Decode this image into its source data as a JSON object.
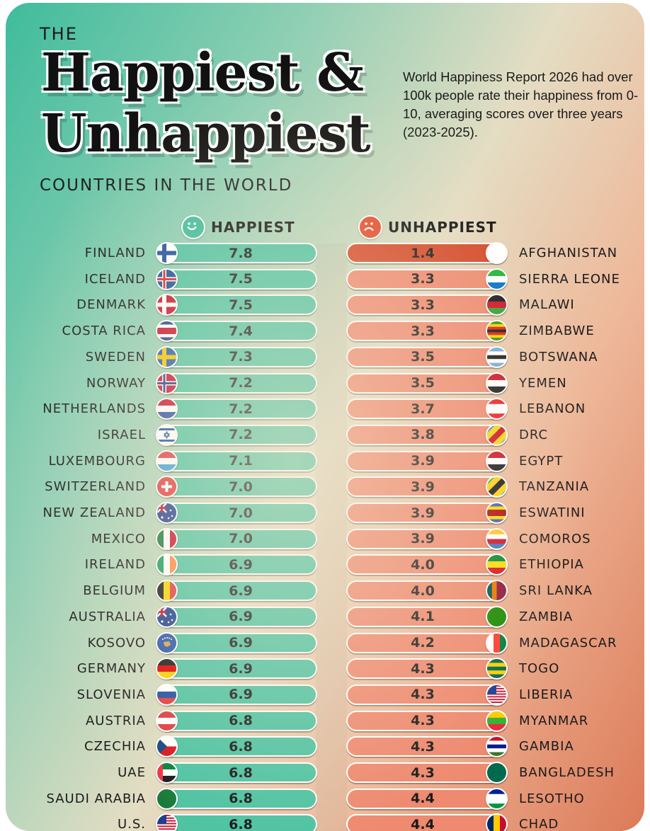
{
  "header": {
    "the": "THE",
    "title_line1": "Happiest &",
    "title_line2": "Unhappiest",
    "subtitle": "COUNTRIES IN THE WORLD",
    "description": "World Happiness Report 2026 had over 100k people rate their happiness from 0-10, averaging scores over three years (2023-2025)."
  },
  "legend": {
    "happiest": "HAPPIEST",
    "unhappiest": "UNHAPPIEST"
  },
  "colors": {
    "happy": "#4fc3a2",
    "unhappy": "#ee8a70",
    "unhappy_first": "#d44a29"
  },
  "chart_data": {
    "type": "table",
    "title": "The Happiest & Unhappiest Countries in the World",
    "series": [
      {
        "name": "HAPPIEST",
        "categories": [
          "FINLAND",
          "ICELAND",
          "DENMARK",
          "COSTA RICA",
          "SWEDEN",
          "NORWAY",
          "NETHERLANDS",
          "ISRAEL",
          "LUXEMBOURG",
          "SWITZERLAND",
          "NEW ZEALAND",
          "MEXICO",
          "IRELAND",
          "BELGIUM",
          "AUSTRALIA",
          "KOSOVO",
          "GERMANY",
          "SLOVENIA",
          "AUSTRIA",
          "CZECHIA",
          "UAE",
          "SAUDI ARABIA",
          "U.S."
        ],
        "values": [
          "7.8",
          "7.5",
          "7.5",
          "7.4",
          "7.3",
          "7.2",
          "7.2",
          "7.2",
          "7.1",
          "7.0",
          "7.0",
          "7.0",
          "6.9",
          "6.9",
          "6.9",
          "6.9",
          "6.9",
          "6.9",
          "6.8",
          "6.8",
          "6.8",
          "6.8",
          "6.8"
        ],
        "flags": [
          {
            "t": "nordic",
            "bg": "#ffffff",
            "c": "#1d4f9a"
          },
          {
            "t": "nordic",
            "bg": "#1d4f9a",
            "c": "#ffffff",
            "c2": "#d72c2c"
          },
          {
            "t": "nordic",
            "bg": "#c8102e",
            "c": "#ffffff"
          },
          {
            "t": "h",
            "c": [
              "#1d3f8f",
              "#ffffff",
              "#c8102e",
              "#c8102e",
              "#ffffff",
              "#1d3f8f"
            ]
          },
          {
            "t": "nordic",
            "bg": "#1f5fa8",
            "c": "#f5c400"
          },
          {
            "t": "nordic",
            "bg": "#c8102e",
            "c": "#ffffff",
            "c2": "#1d3f8f"
          },
          {
            "t": "h",
            "c": [
              "#c8102e",
              "#ffffff",
              "#2b4ea2"
            ]
          },
          {
            "t": "israel"
          },
          {
            "t": "h",
            "c": [
              "#e03a3e",
              "#ffffff",
              "#3aa0d8"
            ]
          },
          {
            "t": "swiss"
          },
          {
            "t": "union",
            "bg": "#1d3f8f"
          },
          {
            "t": "v",
            "c": [
              "#1a7a3a",
              "#ffffff",
              "#c8102e"
            ]
          },
          {
            "t": "v",
            "c": [
              "#169b62",
              "#ffffff",
              "#ff883e"
            ]
          },
          {
            "t": "v",
            "c": [
              "#1a1a1a",
              "#f6d500",
              "#e03a3e"
            ]
          },
          {
            "t": "union",
            "bg": "#1d3f8f"
          },
          {
            "t": "kosovo"
          },
          {
            "t": "h",
            "c": [
              "#1a1a1a",
              "#dd0000",
              "#ffce00"
            ]
          },
          {
            "t": "h",
            "c": [
              "#ffffff",
              "#1d4fa0",
              "#e03a3e"
            ]
          },
          {
            "t": "h",
            "c": [
              "#e03a3e",
              "#ffffff",
              "#e03a3e"
            ]
          },
          {
            "t": "czech"
          },
          {
            "t": "uae"
          },
          {
            "t": "solid",
            "bg": "#1a7a3a"
          },
          {
            "t": "usa"
          }
        ]
      },
      {
        "name": "UNHAPPIEST",
        "categories": [
          "AFGHANISTAN",
          "SIERRA LEONE",
          "MALAWI",
          "ZIMBABWE",
          "BOTSWANA",
          "YEMEN",
          "LEBANON",
          "DRC",
          "EGYPT",
          "TANZANIA",
          "ESWATINI",
          "COMOROS",
          "ETHIOPIA",
          "SRI LANKA",
          "ZAMBIA",
          "MADAGASCAR",
          "TOGO",
          "LIBERIA",
          "MYANMAR",
          "GAMBIA",
          "BANGLADESH",
          "LESOTHO",
          "CHAD"
        ],
        "values": [
          "1.4",
          "3.3",
          "3.3",
          "3.3",
          "3.5",
          "3.5",
          "3.7",
          "3.8",
          "3.9",
          "3.9",
          "3.9",
          "3.9",
          "4.0",
          "4.0",
          "4.1",
          "4.2",
          "4.3",
          "4.3",
          "4.3",
          "4.3",
          "4.3",
          "4.4",
          "4.4"
        ],
        "flags": [
          {
            "t": "solid",
            "bg": "#ffffff"
          },
          {
            "t": "h",
            "c": [
              "#1eb53a",
              "#ffffff",
              "#0072c6"
            ]
          },
          {
            "t": "h",
            "c": [
              "#1a1a1a",
              "#ce1126",
              "#339e35"
            ]
          },
          {
            "t": "h",
            "c": [
              "#319208",
              "#ffd200",
              "#de2010",
              "#1a1a1a",
              "#de2010",
              "#ffd200",
              "#319208"
            ]
          },
          {
            "t": "h",
            "c": [
              "#75aadb",
              "#ffffff",
              "#1a1a1a",
              "#ffffff",
              "#75aadb"
            ]
          },
          {
            "t": "h",
            "c": [
              "#ce1126",
              "#ffffff",
              "#1a1a1a"
            ]
          },
          {
            "t": "h",
            "c": [
              "#ed1c24",
              "#ffffff",
              "#ffffff",
              "#ed1c24"
            ]
          },
          {
            "t": "diag",
            "c": [
              "#2c7fd6",
              "#f7d618",
              "#ce1021",
              "#f7d618",
              "#2c7fd6"
            ]
          },
          {
            "t": "h",
            "c": [
              "#ce1126",
              "#ffffff",
              "#1a1a1a"
            ]
          },
          {
            "t": "diag",
            "c": [
              "#1eb53a",
              "#fcd116",
              "#1a1a1a",
              "#fcd116",
              "#00a3dd"
            ]
          },
          {
            "t": "h",
            "c": [
              "#3e5eb9",
              "#ffd900",
              "#b10c0c",
              "#b10c0c",
              "#ffd900",
              "#3e5eb9"
            ]
          },
          {
            "t": "h",
            "c": [
              "#ffc61e",
              "#ffffff",
              "#ce1126",
              "#3a75c4"
            ]
          },
          {
            "t": "h",
            "c": [
              "#078930",
              "#fcdd09",
              "#da121a"
            ]
          },
          {
            "t": "v",
            "c": [
              "#00534e",
              "#eb7400",
              "#8d153a",
              "#8d153a"
            ]
          },
          {
            "t": "solid",
            "bg": "#198a00"
          },
          {
            "t": "v",
            "c": [
              "#ffffff",
              "#fc3d32",
              "#007e3a"
            ]
          },
          {
            "t": "h",
            "c": [
              "#006a4e",
              "#ffce00",
              "#006a4e",
              "#ffce00",
              "#006a4e"
            ]
          },
          {
            "t": "usa"
          },
          {
            "t": "h",
            "c": [
              "#fecb00",
              "#34b233",
              "#ea2839"
            ]
          },
          {
            "t": "h",
            "c": [
              "#ce1126",
              "#ffffff",
              "#0c1c8c",
              "#ffffff",
              "#3a7728"
            ]
          },
          {
            "t": "solid",
            "bg": "#006a4e"
          },
          {
            "t": "h",
            "c": [
              "#00209f",
              "#ffffff",
              "#ffffff",
              "#009543"
            ]
          },
          {
            "t": "v",
            "c": [
              "#002664",
              "#fecb00",
              "#c60c30"
            ]
          }
        ]
      }
    ],
    "xlabel": "",
    "ylabel": "",
    "scale": "0-10"
  }
}
